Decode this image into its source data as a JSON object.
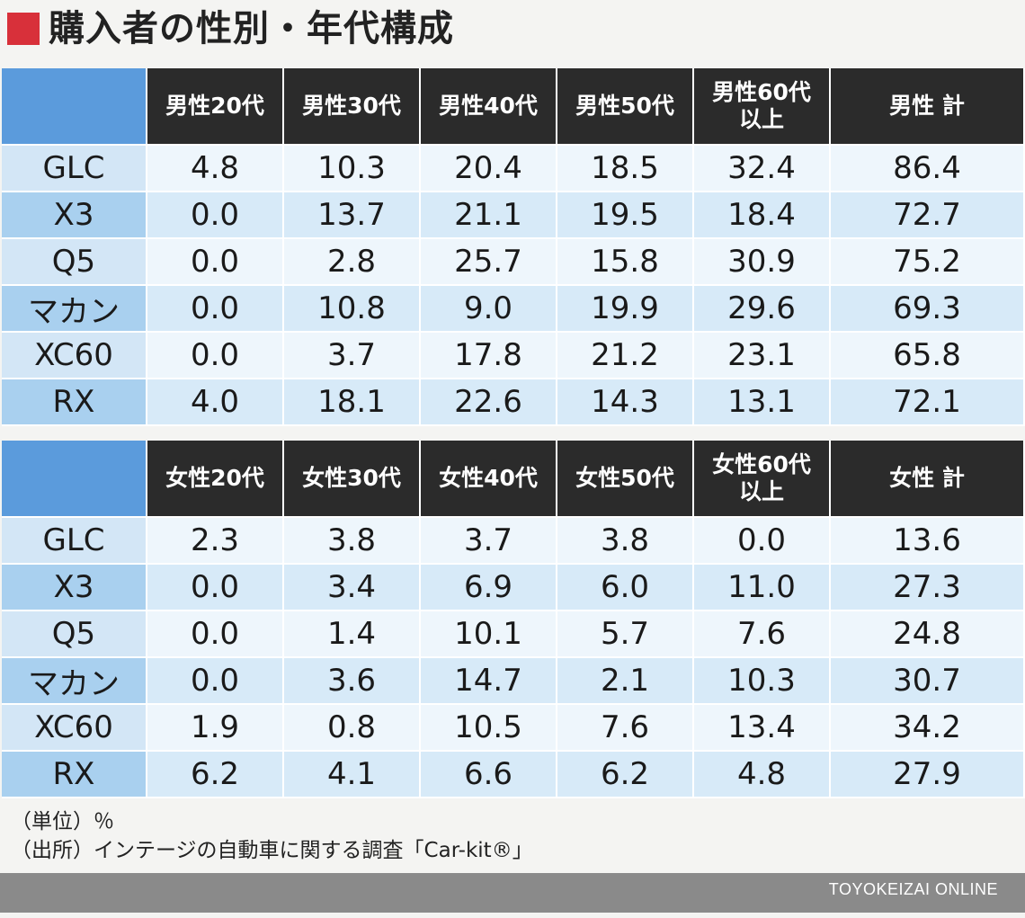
{
  "title": "購入者の性別・年代構成",
  "chart_data": [
    {
      "type": "table",
      "columns": [
        "男性20代",
        "男性30代",
        "男性40代",
        "男性50代",
        "男性60代以上",
        "男性 計"
      ],
      "columns_display": [
        [
          "男性20代"
        ],
        [
          "男性30代"
        ],
        [
          "男性40代"
        ],
        [
          "男性50代"
        ],
        [
          "男性60代",
          "以上"
        ],
        [
          "男性 計"
        ]
      ],
      "rows": [
        {
          "name": "GLC",
          "values": [
            "4.8",
            "10.3",
            "20.4",
            "18.5",
            "32.4",
            "86.4"
          ]
        },
        {
          "name": "X3",
          "values": [
            "0.0",
            "13.7",
            "21.1",
            "19.5",
            "18.4",
            "72.7"
          ]
        },
        {
          "name": "Q5",
          "values": [
            "0.0",
            "2.8",
            "25.7",
            "15.8",
            "30.9",
            "75.2"
          ]
        },
        {
          "name": "マカン",
          "values": [
            "0.0",
            "10.8",
            "9.0",
            "19.9",
            "29.6",
            "69.3"
          ]
        },
        {
          "name": "XC60",
          "values": [
            "0.0",
            "3.7",
            "17.8",
            "21.2",
            "23.1",
            "65.8"
          ]
        },
        {
          "name": "RX",
          "values": [
            "4.0",
            "18.1",
            "22.6",
            "14.3",
            "13.1",
            "72.1"
          ]
        }
      ]
    },
    {
      "type": "table",
      "columns": [
        "女性20代",
        "女性30代",
        "女性40代",
        "女性50代",
        "女性60代以上",
        "女性 計"
      ],
      "columns_display": [
        [
          "女性20代"
        ],
        [
          "女性30代"
        ],
        [
          "女性40代"
        ],
        [
          "女性50代"
        ],
        [
          "女性60代",
          "以上"
        ],
        [
          "女性 計"
        ]
      ],
      "rows": [
        {
          "name": "GLC",
          "values": [
            "2.3",
            "3.8",
            "3.7",
            "3.8",
            "0.0",
            "13.6"
          ]
        },
        {
          "name": "X3",
          "values": [
            "0.0",
            "3.4",
            "6.9",
            "6.0",
            "11.0",
            "27.3"
          ]
        },
        {
          "name": "Q5",
          "values": [
            "0.0",
            "1.4",
            "10.1",
            "5.7",
            "7.6",
            "24.8"
          ]
        },
        {
          "name": "マカン",
          "values": [
            "0.0",
            "3.6",
            "14.7",
            "2.1",
            "10.3",
            "30.7"
          ]
        },
        {
          "name": "XC60",
          "values": [
            "1.9",
            "0.8",
            "10.5",
            "7.6",
            "13.4",
            "34.2"
          ]
        },
        {
          "name": "RX",
          "values": [
            "6.2",
            "4.1",
            "6.6",
            "6.2",
            "4.8",
            "27.9"
          ]
        }
      ]
    }
  ],
  "notes": {
    "unit": "（単位）％",
    "source": "（出所）インテージの自動車に関する調査「Car-kit®」"
  },
  "footer": "TOYOKEIZAI ONLINE",
  "colors": {
    "title_mark": "#d8303a",
    "corner": "#5b9bdc",
    "header": "#2b2b2b",
    "name_odd": "#d3e6f6",
    "name_even": "#a9d0ef",
    "cell_odd": "#eef6fc",
    "cell_even": "#d7eaf8",
    "footer_bar": "#8a8a8a"
  }
}
